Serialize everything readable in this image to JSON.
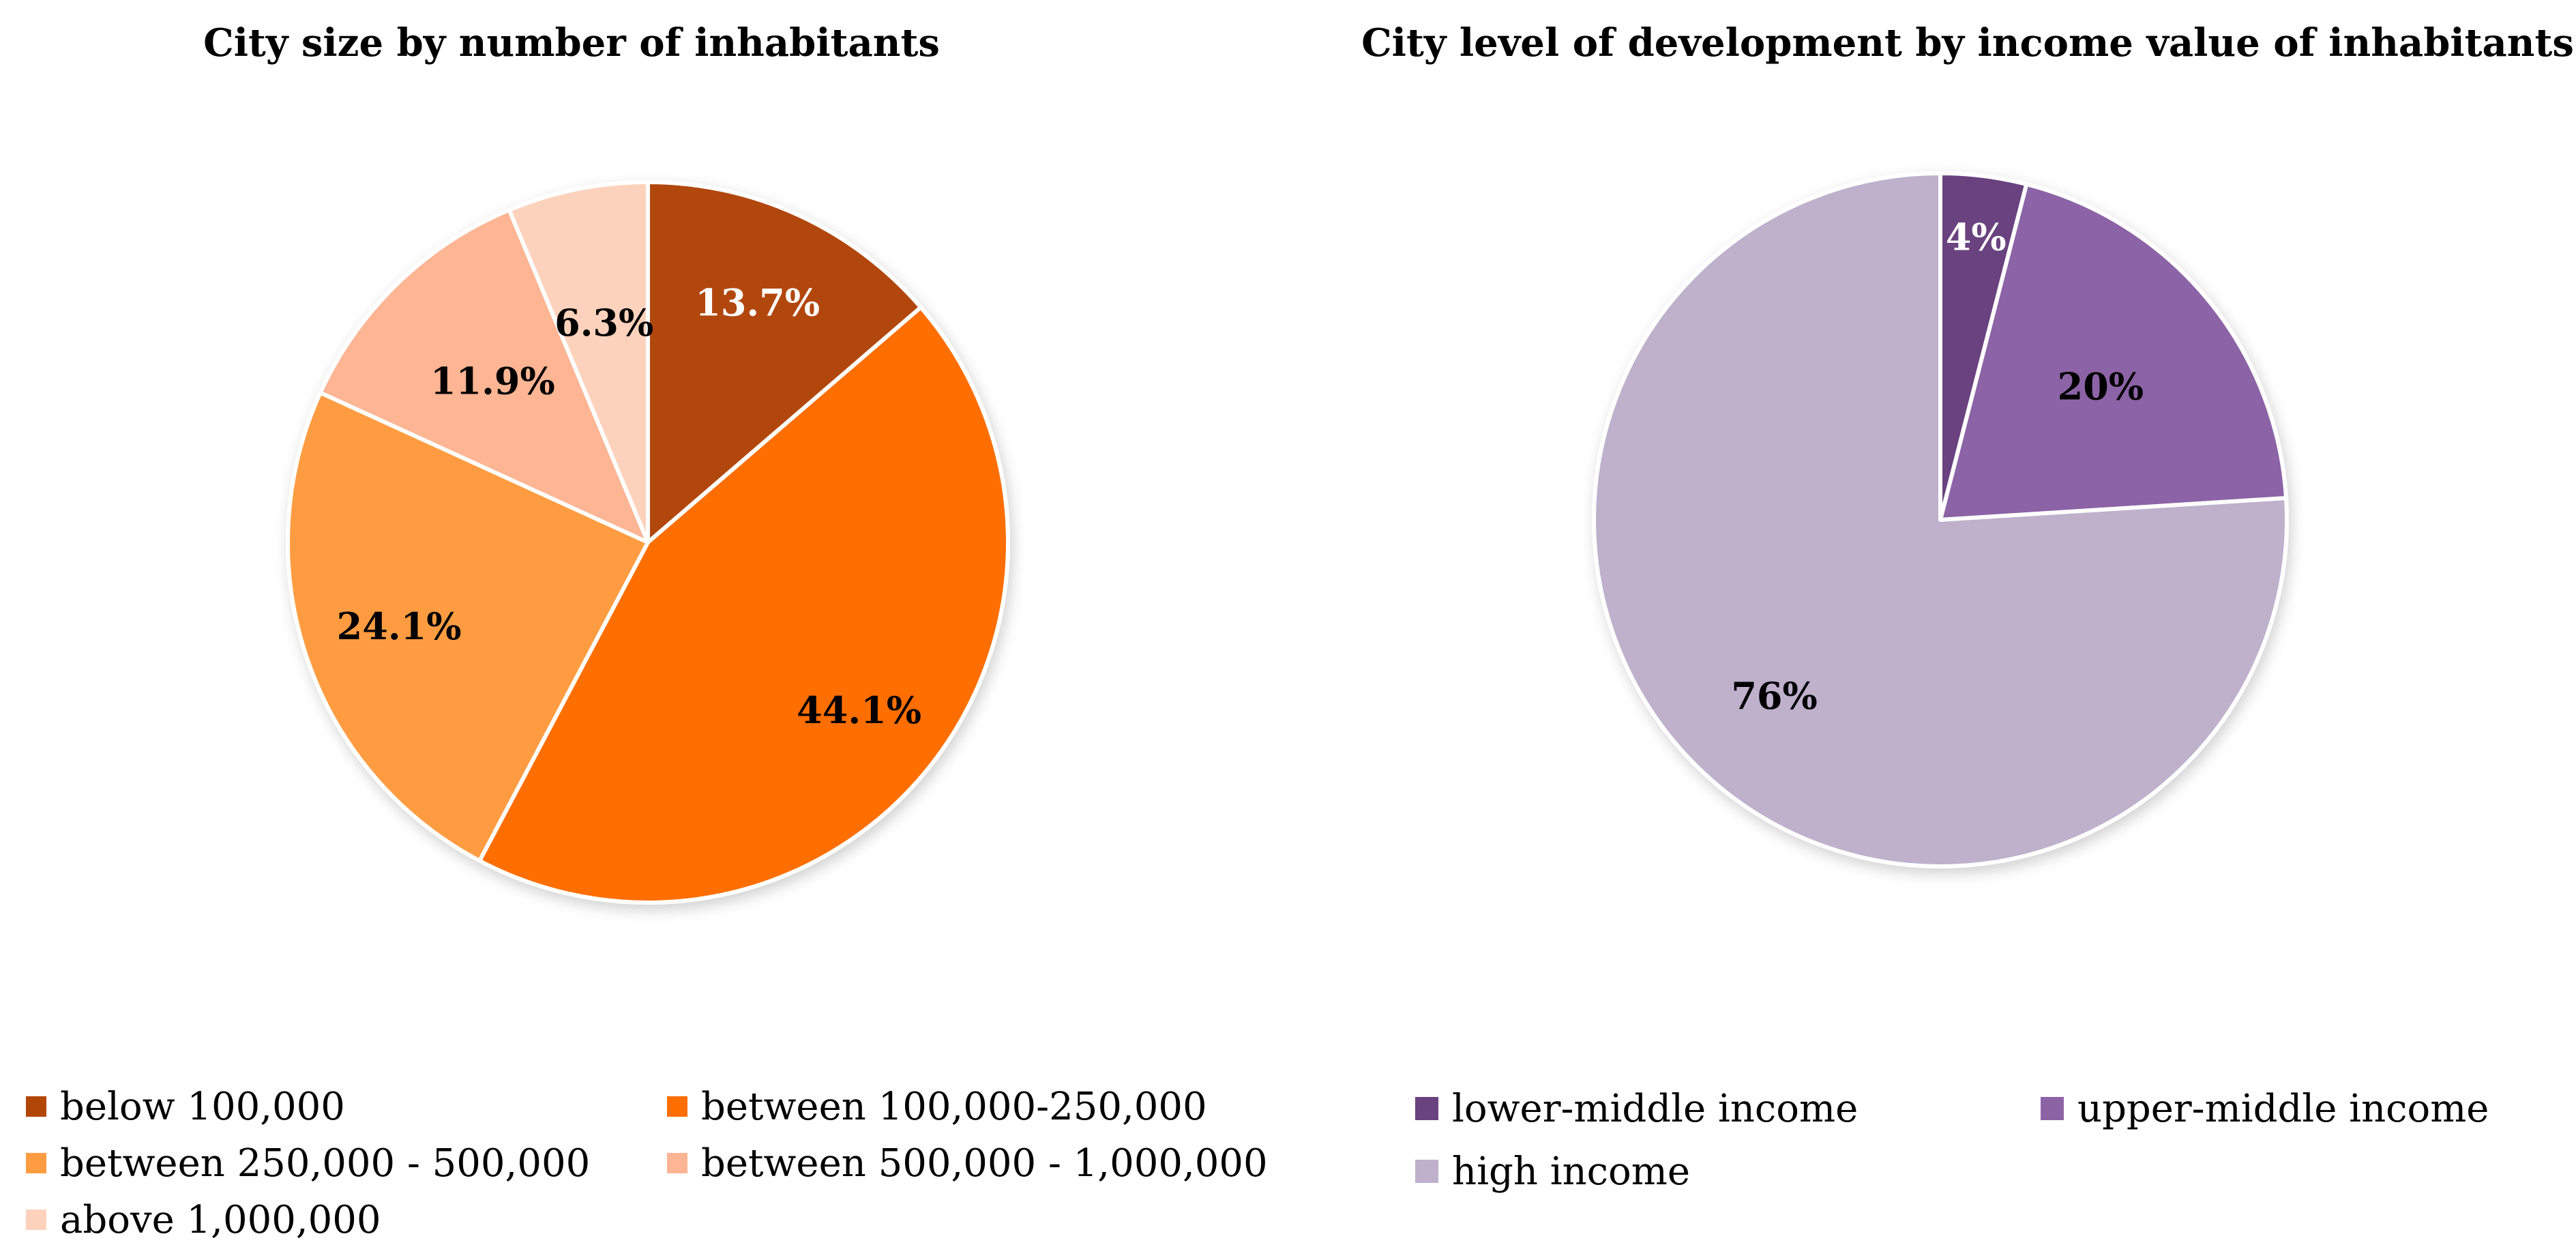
{
  "chart_data": [
    {
      "type": "pie",
      "title": "City size by number of inhabitants",
      "slices": [
        {
          "label": "below 100,000",
          "value": 13.7,
          "display": "13.7%",
          "color": "#B24607",
          "label_color": "#ffffff"
        },
        {
          "label": "between 100,000-250,000",
          "value": 44.1,
          "display": "44.1%",
          "color": "#FF6E00",
          "label_color": "#000000"
        },
        {
          "label": "between 250,000 - 500,000",
          "value": 24.1,
          "display": "24.1%",
          "color": "#FF9C42",
          "label_color": "#000000"
        },
        {
          "label": "between 500,000 - 1,000,000",
          "value": 11.9,
          "display": "11.9%",
          "color": "#FDB593",
          "label_color": "#000000"
        },
        {
          "label": " above 1,000,000",
          "value": 6.3,
          "display": "6.3%",
          "color": "#FDD2BC",
          "label_color": "#000000"
        }
      ],
      "start_angle_deg": 90,
      "direction": "clockwise",
      "legend_position": "bottom"
    },
    {
      "type": "pie",
      "title": "City level of development by income value of inhabitants",
      "slices": [
        {
          "label": "lower-middle income",
          "value": 4,
          "display": "4%",
          "color": "#69437F",
          "label_color": "#ffffff"
        },
        {
          "label": "upper-middle income",
          "value": 20,
          "display": "20%",
          "color": "#8C64A6",
          "label_color": "#000000"
        },
        {
          "label": "high income",
          "value": 76,
          "display": "76%",
          "color": "#BFB0CC",
          "label_color": "#000000"
        }
      ],
      "start_angle_deg": 90,
      "direction": "clockwise",
      "legend_position": "bottom"
    }
  ]
}
